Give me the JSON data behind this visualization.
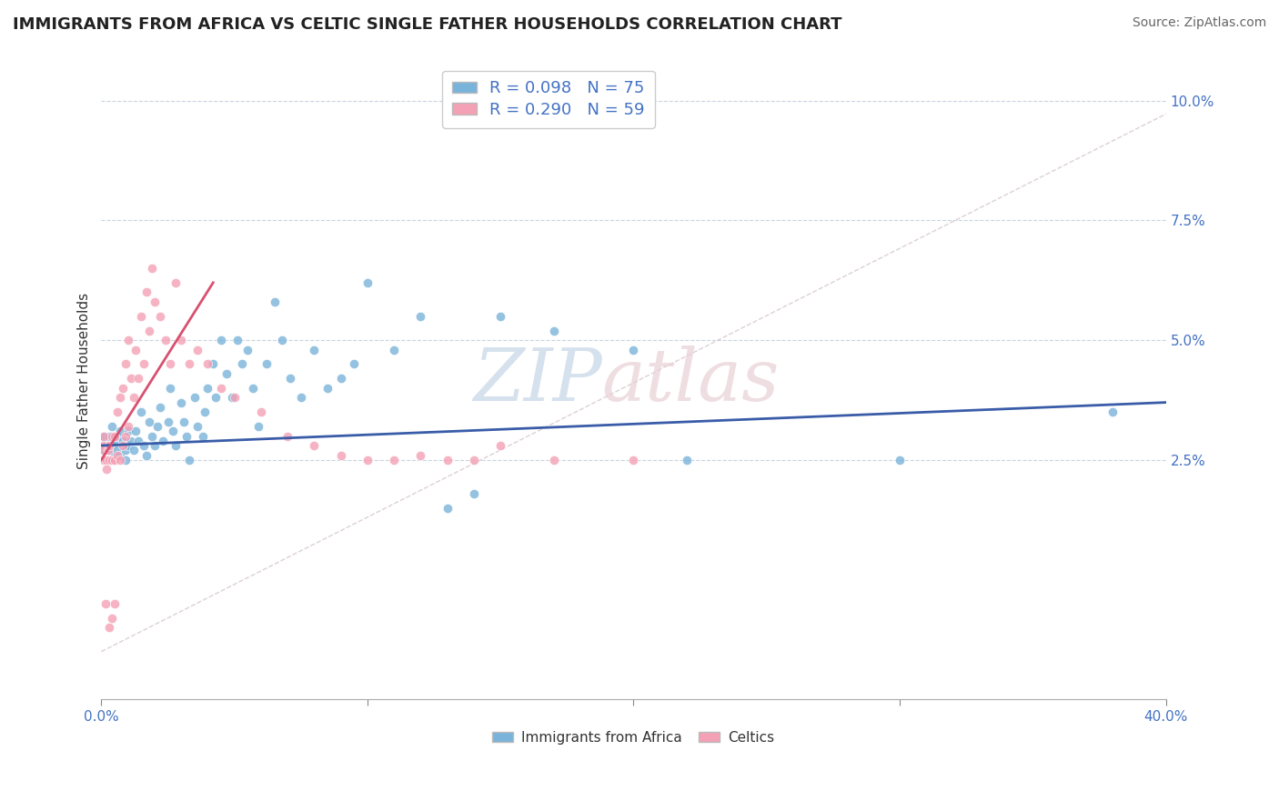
{
  "title": "IMMIGRANTS FROM AFRICA VS CELTIC SINGLE FATHER HOUSEHOLDS CORRELATION CHART",
  "source": "Source: ZipAtlas.com",
  "ylabel": "Single Father Households",
  "yticks": [
    "2.5%",
    "5.0%",
    "7.5%",
    "10.0%"
  ],
  "ytick_vals": [
    0.025,
    0.05,
    0.075,
    0.1
  ],
  "xmin": 0.0,
  "xmax": 0.4,
  "ymin": -0.025,
  "ymax": 0.108,
  "r_blue": 0.098,
  "n_blue": 75,
  "r_pink": 0.29,
  "n_pink": 59,
  "blue_color": "#7ab3d9",
  "pink_color": "#f4a0b5",
  "blue_line_color": "#3a5ca8",
  "pink_line_color": "#d85070",
  "legend_label_blue": "Immigrants from Africa",
  "legend_label_pink": "Celtics",
  "blue_scatter_x": [
    0.001,
    0.001,
    0.002,
    0.002,
    0.003,
    0.003,
    0.004,
    0.004,
    0.005,
    0.005,
    0.006,
    0.006,
    0.007,
    0.007,
    0.008,
    0.009,
    0.009,
    0.01,
    0.01,
    0.011,
    0.012,
    0.013,
    0.014,
    0.015,
    0.016,
    0.017,
    0.018,
    0.019,
    0.02,
    0.021,
    0.022,
    0.023,
    0.025,
    0.026,
    0.027,
    0.028,
    0.03,
    0.031,
    0.032,
    0.033,
    0.035,
    0.036,
    0.038,
    0.039,
    0.04,
    0.042,
    0.043,
    0.045,
    0.047,
    0.049,
    0.051,
    0.053,
    0.055,
    0.057,
    0.059,
    0.062,
    0.065,
    0.068,
    0.071,
    0.075,
    0.08,
    0.085,
    0.09,
    0.095,
    0.1,
    0.11,
    0.12,
    0.13,
    0.14,
    0.15,
    0.17,
    0.2,
    0.22,
    0.3,
    0.38
  ],
  "blue_scatter_y": [
    0.03,
    0.027,
    0.028,
    0.025,
    0.03,
    0.027,
    0.028,
    0.032,
    0.026,
    0.029,
    0.027,
    0.03,
    0.026,
    0.031,
    0.029,
    0.027,
    0.025,
    0.028,
    0.031,
    0.029,
    0.027,
    0.031,
    0.029,
    0.035,
    0.028,
    0.026,
    0.033,
    0.03,
    0.028,
    0.032,
    0.036,
    0.029,
    0.033,
    0.04,
    0.031,
    0.028,
    0.037,
    0.033,
    0.03,
    0.025,
    0.038,
    0.032,
    0.03,
    0.035,
    0.04,
    0.045,
    0.038,
    0.05,
    0.043,
    0.038,
    0.05,
    0.045,
    0.048,
    0.04,
    0.032,
    0.045,
    0.058,
    0.05,
    0.042,
    0.038,
    0.048,
    0.04,
    0.042,
    0.045,
    0.062,
    0.048,
    0.055,
    0.015,
    0.018,
    0.055,
    0.052,
    0.048,
    0.025,
    0.025,
    0.035
  ],
  "pink_scatter_x": [
    0.0005,
    0.0008,
    0.001,
    0.001,
    0.0015,
    0.002,
    0.002,
    0.0025,
    0.003,
    0.003,
    0.003,
    0.004,
    0.004,
    0.004,
    0.005,
    0.005,
    0.005,
    0.006,
    0.006,
    0.007,
    0.007,
    0.008,
    0.008,
    0.009,
    0.009,
    0.01,
    0.01,
    0.011,
    0.012,
    0.013,
    0.014,
    0.015,
    0.016,
    0.017,
    0.018,
    0.019,
    0.02,
    0.022,
    0.024,
    0.026,
    0.028,
    0.03,
    0.033,
    0.036,
    0.04,
    0.045,
    0.05,
    0.06,
    0.07,
    0.08,
    0.09,
    0.1,
    0.11,
    0.12,
    0.13,
    0.14,
    0.15,
    0.17,
    0.2
  ],
  "pink_scatter_y": [
    0.028,
    0.025,
    0.03,
    0.027,
    -0.005,
    0.025,
    0.023,
    0.027,
    -0.01,
    0.025,
    0.028,
    0.025,
    0.03,
    -0.008,
    0.025,
    0.03,
    -0.005,
    0.026,
    0.035,
    0.025,
    0.038,
    0.028,
    0.04,
    0.03,
    0.045,
    0.032,
    0.05,
    0.042,
    0.038,
    0.048,
    0.042,
    0.055,
    0.045,
    0.06,
    0.052,
    0.065,
    0.058,
    0.055,
    0.05,
    0.045,
    0.062,
    0.05,
    0.045,
    0.048,
    0.045,
    0.04,
    0.038,
    0.035,
    0.03,
    0.028,
    0.026,
    0.025,
    0.025,
    0.026,
    0.025,
    0.025,
    0.028,
    0.025,
    0.025
  ]
}
